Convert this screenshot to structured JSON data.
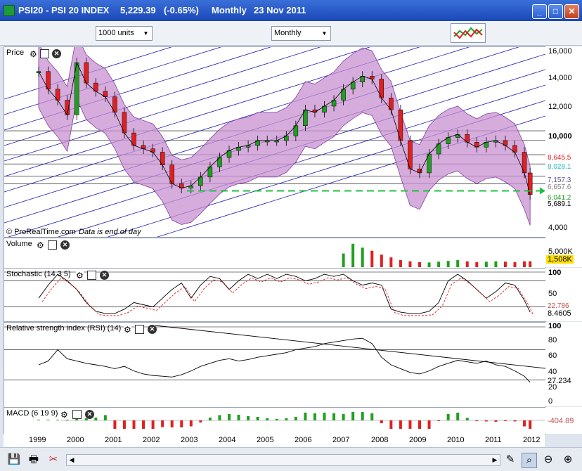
{
  "window": {
    "symbol": "PSI20 - PSI 20 INDEX",
    "price": "5,229.39",
    "change": "(-0.65%)",
    "period": "Monthly",
    "date": "23 Nov 2011"
  },
  "toolbar": {
    "units": "1000 units",
    "timeframe": "Monthly"
  },
  "panels": {
    "price_label": "Price",
    "copyright": "© ProRealTime.com",
    "eod_note": "Data is end of day",
    "volume_label": "Volume",
    "stoch_label": "Stochastic (14 3 5)",
    "rsi_label": "Relative strength index (RSI) (14)",
    "macd_label": "MACD (6 19 9)"
  },
  "axes": {
    "price_ticks": [
      "16,000",
      "14,000",
      "12,000",
      "10,000",
      "4,000"
    ],
    "price_tags": [
      {
        "text": "8,645.5",
        "color": "#e02020"
      },
      {
        "text": "8,028.1",
        "color": "#20b8d0"
      },
      {
        "text": "7,157.3",
        "color": "#5a5aa0"
      },
      {
        "text": "6,657.6",
        "color": "#808080"
      },
      {
        "text": "6,041.2",
        "color": "#20a020"
      },
      {
        "text": "5,689.1",
        "color": "#000000"
      }
    ],
    "volume_ticks": [
      "5,000K"
    ],
    "volume_tag": "1,508K",
    "stoch_ticks": [
      "100",
      "50"
    ],
    "stoch_tags": [
      "22.786",
      "8.4605"
    ],
    "rsi_ticks": [
      "100",
      "80",
      "60",
      "40",
      "20",
      "0"
    ],
    "rsi_tag": "27.234",
    "macd_tag": "-404.89",
    "x_ticks": [
      "1999",
      "2000",
      "2001",
      "2002",
      "2003",
      "2004",
      "2005",
      "2006",
      "2007",
      "2008",
      "2009",
      "2010",
      "2011",
      "2012"
    ]
  },
  "colors": {
    "up": "#20a020",
    "down": "#e02020",
    "bollinger_fill": "#c890d0",
    "trendline": "#1a1ab0",
    "support": "#20c040"
  },
  "chart_data": {
    "type": "line",
    "x": [
      1999.0,
      1999.25,
      1999.5,
      1999.75,
      2000.0,
      2000.25,
      2000.5,
      2000.75,
      2001.0,
      2001.25,
      2001.5,
      2001.75,
      2002.0,
      2002.25,
      2002.5,
      2002.75,
      2003.0,
      2003.25,
      2003.5,
      2003.75,
      2004.0,
      2004.25,
      2004.5,
      2004.75,
      2005.0,
      2005.25,
      2005.5,
      2005.75,
      2006.0,
      2006.25,
      2006.5,
      2006.75,
      2007.0,
      2007.25,
      2007.5,
      2007.75,
      2008.0,
      2008.25,
      2008.5,
      2008.75,
      2009.0,
      2009.25,
      2009.5,
      2009.75,
      2010.0,
      2010.25,
      2010.5,
      2010.75,
      2011.0,
      2011.25,
      2011.5,
      2011.75,
      2011.9
    ],
    "series": [
      {
        "values": [
          13800,
          12000,
          11000,
          9800,
          14800,
          12600,
          11800,
          11300,
          10000,
          8500,
          7700,
          7500,
          7300,
          6600,
          5700,
          5500,
          5600,
          6000,
          6500,
          7000,
          7400,
          7600,
          7700,
          8000,
          8000,
          8000,
          8300,
          9000,
          10200,
          10000,
          10500,
          11000,
          12000,
          12700,
          13300,
          13000,
          11200,
          10200,
          8000,
          6400,
          6200,
          7200,
          7800,
          8200,
          8400,
          7900,
          7600,
          7900,
          8000,
          7700,
          7300,
          6200,
          5229
        ]
      },
      {
        "name": "Volume",
        "values": [
          0,
          0,
          0,
          0,
          0,
          0,
          0,
          0,
          0,
          0,
          0,
          0,
          0,
          0,
          0,
          0,
          0,
          0,
          0,
          0,
          0,
          0,
          0,
          0,
          0,
          0,
          0,
          0,
          0,
          0,
          0,
          0,
          3500,
          6000,
          5000,
          4200,
          3200,
          2500,
          1800,
          1500,
          1300,
          1200,
          1400,
          1600,
          1800,
          1500,
          1300,
          1400,
          1500,
          1400,
          1300,
          1500,
          1508
        ]
      },
      {
        "name": "Stochastic",
        "values": [
          40,
          70,
          95,
          80,
          60,
          30,
          10,
          5,
          5,
          15,
          30,
          25,
          20,
          40,
          60,
          75,
          40,
          70,
          90,
          85,
          60,
          80,
          95,
          85,
          95,
          85,
          95,
          90,
          80,
          85,
          95,
          90,
          95,
          80,
          70,
          75,
          70,
          15,
          8,
          5,
          5,
          10,
          30,
          80,
          95,
          80,
          60,
          40,
          55,
          75,
          70,
          35,
          8
        ]
      },
      {
        "name": "RSI",
        "values": [
          50,
          55,
          70,
          58,
          55,
          52,
          50,
          48,
          45,
          48,
          42,
          38,
          36,
          35,
          34,
          37,
          42,
          48,
          52,
          56,
          58,
          55,
          57,
          60,
          62,
          64,
          66,
          70,
          72,
          74,
          78,
          80,
          82,
          84,
          85,
          78,
          60,
          50,
          45,
          40,
          38,
          42,
          48,
          52,
          56,
          54,
          52,
          55,
          50,
          48,
          42,
          35,
          27
        ]
      }
    ],
    "ylim": [
      4000,
      16000
    ],
    "support_level": 5689.1
  }
}
